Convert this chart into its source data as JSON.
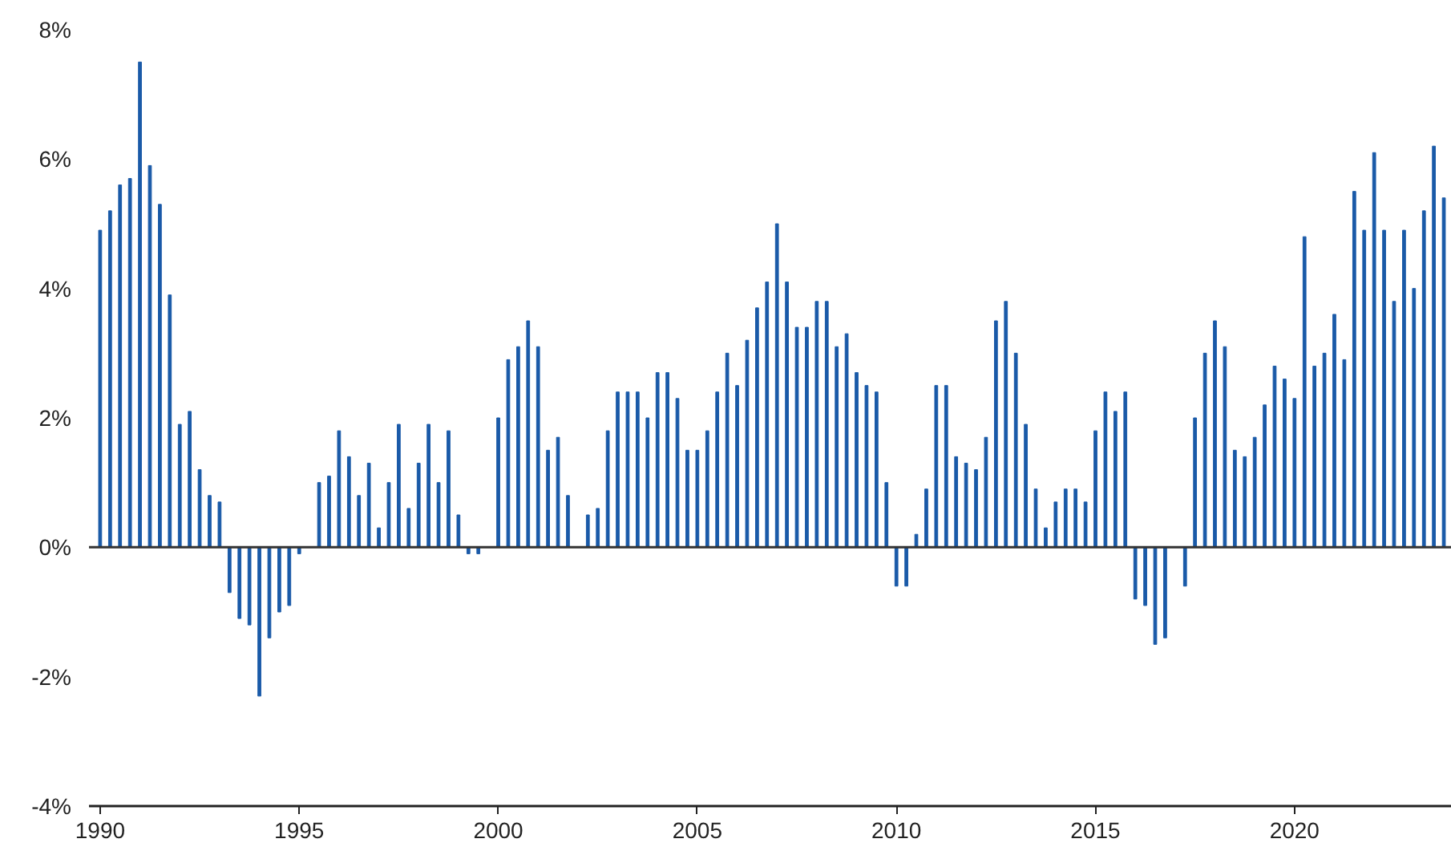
{
  "chart_data": {
    "type": "bar",
    "color": "#1a5aa8",
    "x": [
      1990,
      1990.25,
      1990.5,
      1990.75,
      1991,
      1991.25,
      1991.5,
      1991.75,
      1992,
      1992.25,
      1992.5,
      1992.75,
      1993,
      1993.25,
      1993.5,
      1993.75,
      1994,
      1994.25,
      1994.5,
      1994.75,
      1995,
      1995.25,
      1995.5,
      1995.75,
      1996,
      1996.25,
      1996.5,
      1996.75,
      1997,
      1997.25,
      1997.5,
      1997.75,
      1998,
      1998.25,
      1998.5,
      1998.75,
      1999,
      1999.25,
      1999.5,
      1999.75,
      2000,
      2000.25,
      2000.5,
      2000.75,
      2001,
      2001.25,
      2001.5,
      2001.75,
      2002,
      2002.25,
      2002.5,
      2002.75,
      2003,
      2003.25,
      2003.5,
      2003.75,
      2004,
      2004.25,
      2004.5,
      2004.75,
      2005,
      2005.25,
      2005.5,
      2005.75,
      2006,
      2006.25,
      2006.5,
      2006.75,
      2007,
      2007.25,
      2007.5,
      2007.75,
      2008,
      2008.25,
      2008.5,
      2008.75,
      2009,
      2009.25,
      2009.5,
      2009.75,
      2010,
      2010.25,
      2010.5,
      2010.75,
      2011,
      2011.25,
      2011.5,
      2011.75,
      2012,
      2012.25,
      2012.5,
      2012.75,
      2013,
      2013.25,
      2013.5,
      2013.75,
      2014,
      2014.25,
      2014.5,
      2014.75,
      2015,
      2015.25,
      2015.5,
      2015.75,
      2016,
      2016.25,
      2016.5,
      2016.75,
      2017,
      2017.25,
      2017.5,
      2017.75,
      2018,
      2018.25,
      2018.5,
      2018.75,
      2019,
      2019.25,
      2019.5,
      2019.75,
      2020,
      2020.25,
      2020.5,
      2020.75,
      2021,
      2021.25,
      2021.5,
      2021.75,
      2022,
      2022.25,
      2022.5,
      2022.75,
      2023,
      2023.25,
      2023.5,
      2023.75
    ],
    "values": [
      4.9,
      5.2,
      5.6,
      5.7,
      7.5,
      5.9,
      5.3,
      3.9,
      1.9,
      2.1,
      1.2,
      0.8,
      0.7,
      -0.7,
      -1.1,
      -1.2,
      -2.3,
      -1.4,
      -1.0,
      -0.9,
      -0.1,
      0,
      1.0,
      1.1,
      1.8,
      1.4,
      0.8,
      1.3,
      0.3,
      1.0,
      1.9,
      0.6,
      1.3,
      1.9,
      1.0,
      1.8,
      0.5,
      -0.1,
      -0.1,
      0,
      2.0,
      2.9,
      3.1,
      3.5,
      3.1,
      1.5,
      1.7,
      0.8,
      0,
      0.5,
      0.6,
      1.8,
      2.4,
      2.4,
      2.4,
      2.0,
      2.7,
      2.7,
      2.3,
      1.5,
      1.5,
      1.8,
      2.4,
      3.0,
      2.5,
      3.2,
      3.7,
      4.1,
      5.0,
      4.1,
      3.4,
      3.4,
      3.8,
      3.8,
      3.1,
      3.3,
      2.7,
      2.5,
      2.4,
      1.0,
      -0.6,
      -0.6,
      0.2,
      0.9,
      2.5,
      2.5,
      1.4,
      1.3,
      1.2,
      1.7,
      3.5,
      3.8,
      3.0,
      1.9,
      0.9,
      0.3,
      0.7,
      0.9,
      0.9,
      0.7,
      1.8,
      2.4,
      2.1,
      2.4,
      -0.8,
      -0.9,
      -1.5,
      -1.4,
      0,
      -0.6,
      2.0,
      3.0,
      3.5,
      3.1,
      1.5,
      1.4,
      1.7,
      2.2,
      2.8,
      2.6,
      2.3,
      4.8,
      2.8,
      3.0,
      3.6,
      2.9,
      5.5,
      4.9,
      6.1,
      4.9,
      3.8,
      4.9,
      4.0,
      5.2,
      6.2,
      5.4
    ],
    "xlim": [
      1989.72,
      2023.95
    ],
    "xticks": [
      1990,
      1995,
      2000,
      2005,
      2010,
      2015,
      2020
    ],
    "ylim": [
      -4,
      8
    ],
    "yticks": [
      {
        "value": -4,
        "label": "-4%"
      },
      {
        "value": -2,
        "label": "-2%"
      },
      {
        "value": 0,
        "label": "0%"
      },
      {
        "value": 2,
        "label": "2%"
      },
      {
        "value": 4,
        "label": "4%"
      },
      {
        "value": 6,
        "label": "6%"
      },
      {
        "value": 8,
        "label": "8%"
      }
    ],
    "ref_lines": [
      {
        "axis": "y",
        "value": 0,
        "color": "#333333"
      }
    ],
    "grid": false
  }
}
